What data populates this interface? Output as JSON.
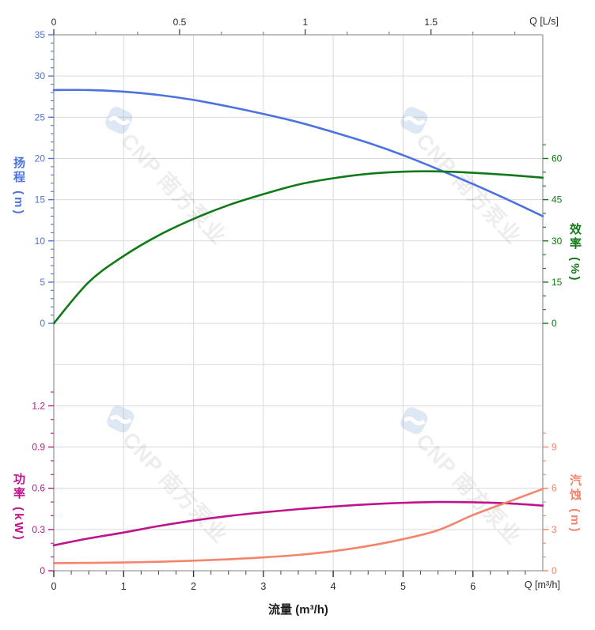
{
  "watermark": {
    "text": "CNP 南方泵业",
    "logo": "cnp-logo",
    "text_color": "rgba(0,0,0,0.07)",
    "logo_color": "rgba(105,150,210,0.22)"
  },
  "colors": {
    "head": "#4b72e0",
    "efficiency": "#117a18",
    "power": "#c0138a",
    "npsh": "#f5846b",
    "grid": "#d9d9d9",
    "spine": "#9a9a9a",
    "text": "#2b2b2b"
  },
  "axes": {
    "top": {
      "label": "Q [L/s]",
      "majors": [
        0,
        0.5,
        1,
        1.5
      ],
      "minor_step": 0.16667,
      "range": [
        0,
        1.944
      ]
    },
    "bottom": {
      "label": "Q [m³/h]",
      "title": "流量 (m³/h)",
      "majors": [
        0,
        1,
        2,
        3,
        4,
        5,
        6
      ],
      "minor_step": 0.25,
      "range": [
        0,
        7
      ]
    },
    "head": {
      "title": "扬程 (m)",
      "majors": [
        0,
        5,
        10,
        15,
        20,
        25,
        30,
        35
      ],
      "minor_step": 1,
      "range": [
        0,
        35
      ]
    },
    "efficiency": {
      "title": "效率 (%)",
      "majors": [
        0,
        15,
        30,
        45,
        60
      ],
      "minor_step": 5,
      "range": [
        0,
        65
      ]
    },
    "power": {
      "title": "功率 (kW)",
      "majors": [
        0,
        0.3,
        0.6,
        0.9,
        1.2
      ],
      "minor_step": 0.1,
      "range": [
        0,
        1.3
      ]
    },
    "npsh": {
      "title": "汽蚀 (m)",
      "majors": [
        0,
        3,
        6,
        9
      ],
      "minor_step": 1,
      "range": [
        0,
        10
      ]
    }
  },
  "chart_data": {
    "type": "line",
    "title": "",
    "xlabel": "流量 (m³/h)",
    "x_units": [
      "m³/h",
      "L/s"
    ],
    "x_range_m3h": [
      0,
      7
    ],
    "x_range_ls": [
      0,
      1.944
    ],
    "x": [
      0,
      0.5,
      1,
      1.5,
      2,
      2.5,
      3,
      3.5,
      4,
      4.5,
      5,
      5.5,
      6,
      6.5,
      7
    ],
    "series": [
      {
        "name": "扬程",
        "unit": "m",
        "axis": "head",
        "ylim": [
          0,
          35
        ],
        "values": [
          28.3,
          28.3,
          28.1,
          27.7,
          27.1,
          26.3,
          25.4,
          24.4,
          23.2,
          21.9,
          20.4,
          18.7,
          16.9,
          15.0,
          13.0
        ]
      },
      {
        "name": "效率",
        "unit": "%",
        "axis": "efficiency",
        "ylim": [
          0,
          65
        ],
        "values": [
          0,
          15,
          24.5,
          32,
          38,
          43,
          47,
          50.5,
          52.8,
          54.4,
          55.2,
          55.3,
          54.8,
          54,
          53
        ]
      },
      {
        "name": "功率",
        "unit": "kW",
        "axis": "power",
        "ylim": [
          0,
          1.3
        ],
        "values": [
          0.185,
          0.235,
          0.278,
          0.325,
          0.365,
          0.398,
          0.425,
          0.448,
          0.467,
          0.483,
          0.494,
          0.5,
          0.498,
          0.49,
          0.474
        ]
      },
      {
        "name": "汽蚀",
        "unit": "m",
        "axis": "npsh",
        "ylim": [
          0,
          10
        ],
        "values": [
          0.55,
          0.57,
          0.6,
          0.65,
          0.73,
          0.83,
          0.97,
          1.15,
          1.42,
          1.8,
          2.3,
          2.95,
          4.05,
          5.0,
          5.95
        ]
      }
    ],
    "grid": "on",
    "legend": "none"
  }
}
